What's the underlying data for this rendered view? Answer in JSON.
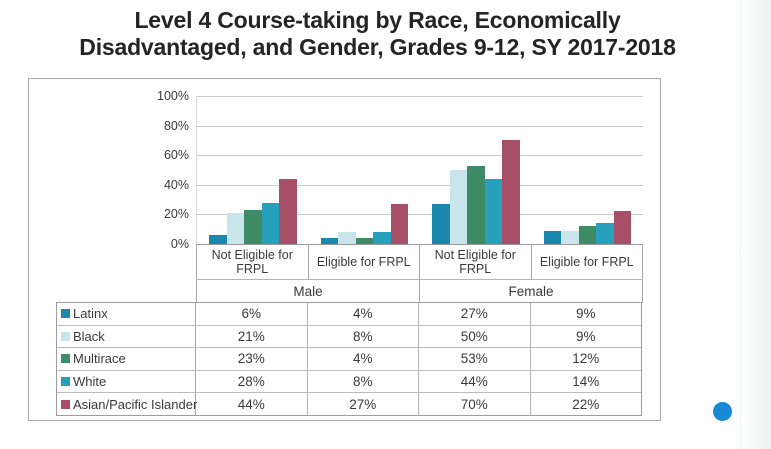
{
  "page_title": {
    "line1": "Level 4 Course-taking by Race, Economically",
    "line2": "Disadvantaged, and Gender, Grades 9-12, SY 2017-2018"
  },
  "chart_data": {
    "type": "bar",
    "title": "Level 4 Course-taking by Race, Economically Disadvantaged, and Gender, Grades 9-12, SY 2017-2018",
    "xlabel": "",
    "ylabel": "",
    "ylim": [
      0,
      100
    ],
    "grid": true,
    "legend_position": "table-left",
    "y_ticks": [
      "100%",
      "80%",
      "60%",
      "40%",
      "20%",
      "0%"
    ],
    "categories": [
      "Not Eligible for FRPL",
      "Eligible for FRPL",
      "Not Eligible for FRPL",
      "Eligible for FRPL"
    ],
    "gender_groups": [
      "Male",
      "Female"
    ],
    "series": [
      {
        "name": "Latinx",
        "color": "#1b87ad",
        "values": [
          6,
          4,
          27,
          9
        ]
      },
      {
        "name": "Black",
        "color": "#c7e5ea",
        "values": [
          21,
          8,
          50,
          9
        ]
      },
      {
        "name": "Multirace",
        "color": "#3e8b66",
        "values": [
          23,
          4,
          53,
          12
        ]
      },
      {
        "name": "White",
        "color": "#27a0bd",
        "values": [
          28,
          8,
          44,
          14
        ]
      },
      {
        "name": "Asian/Pacific Islander",
        "color": "#a84f68",
        "values": [
          44,
          27,
          70,
          22
        ]
      }
    ],
    "value_format": "percent"
  },
  "decor": {
    "bullet_dot_color": "#1789d6"
  }
}
